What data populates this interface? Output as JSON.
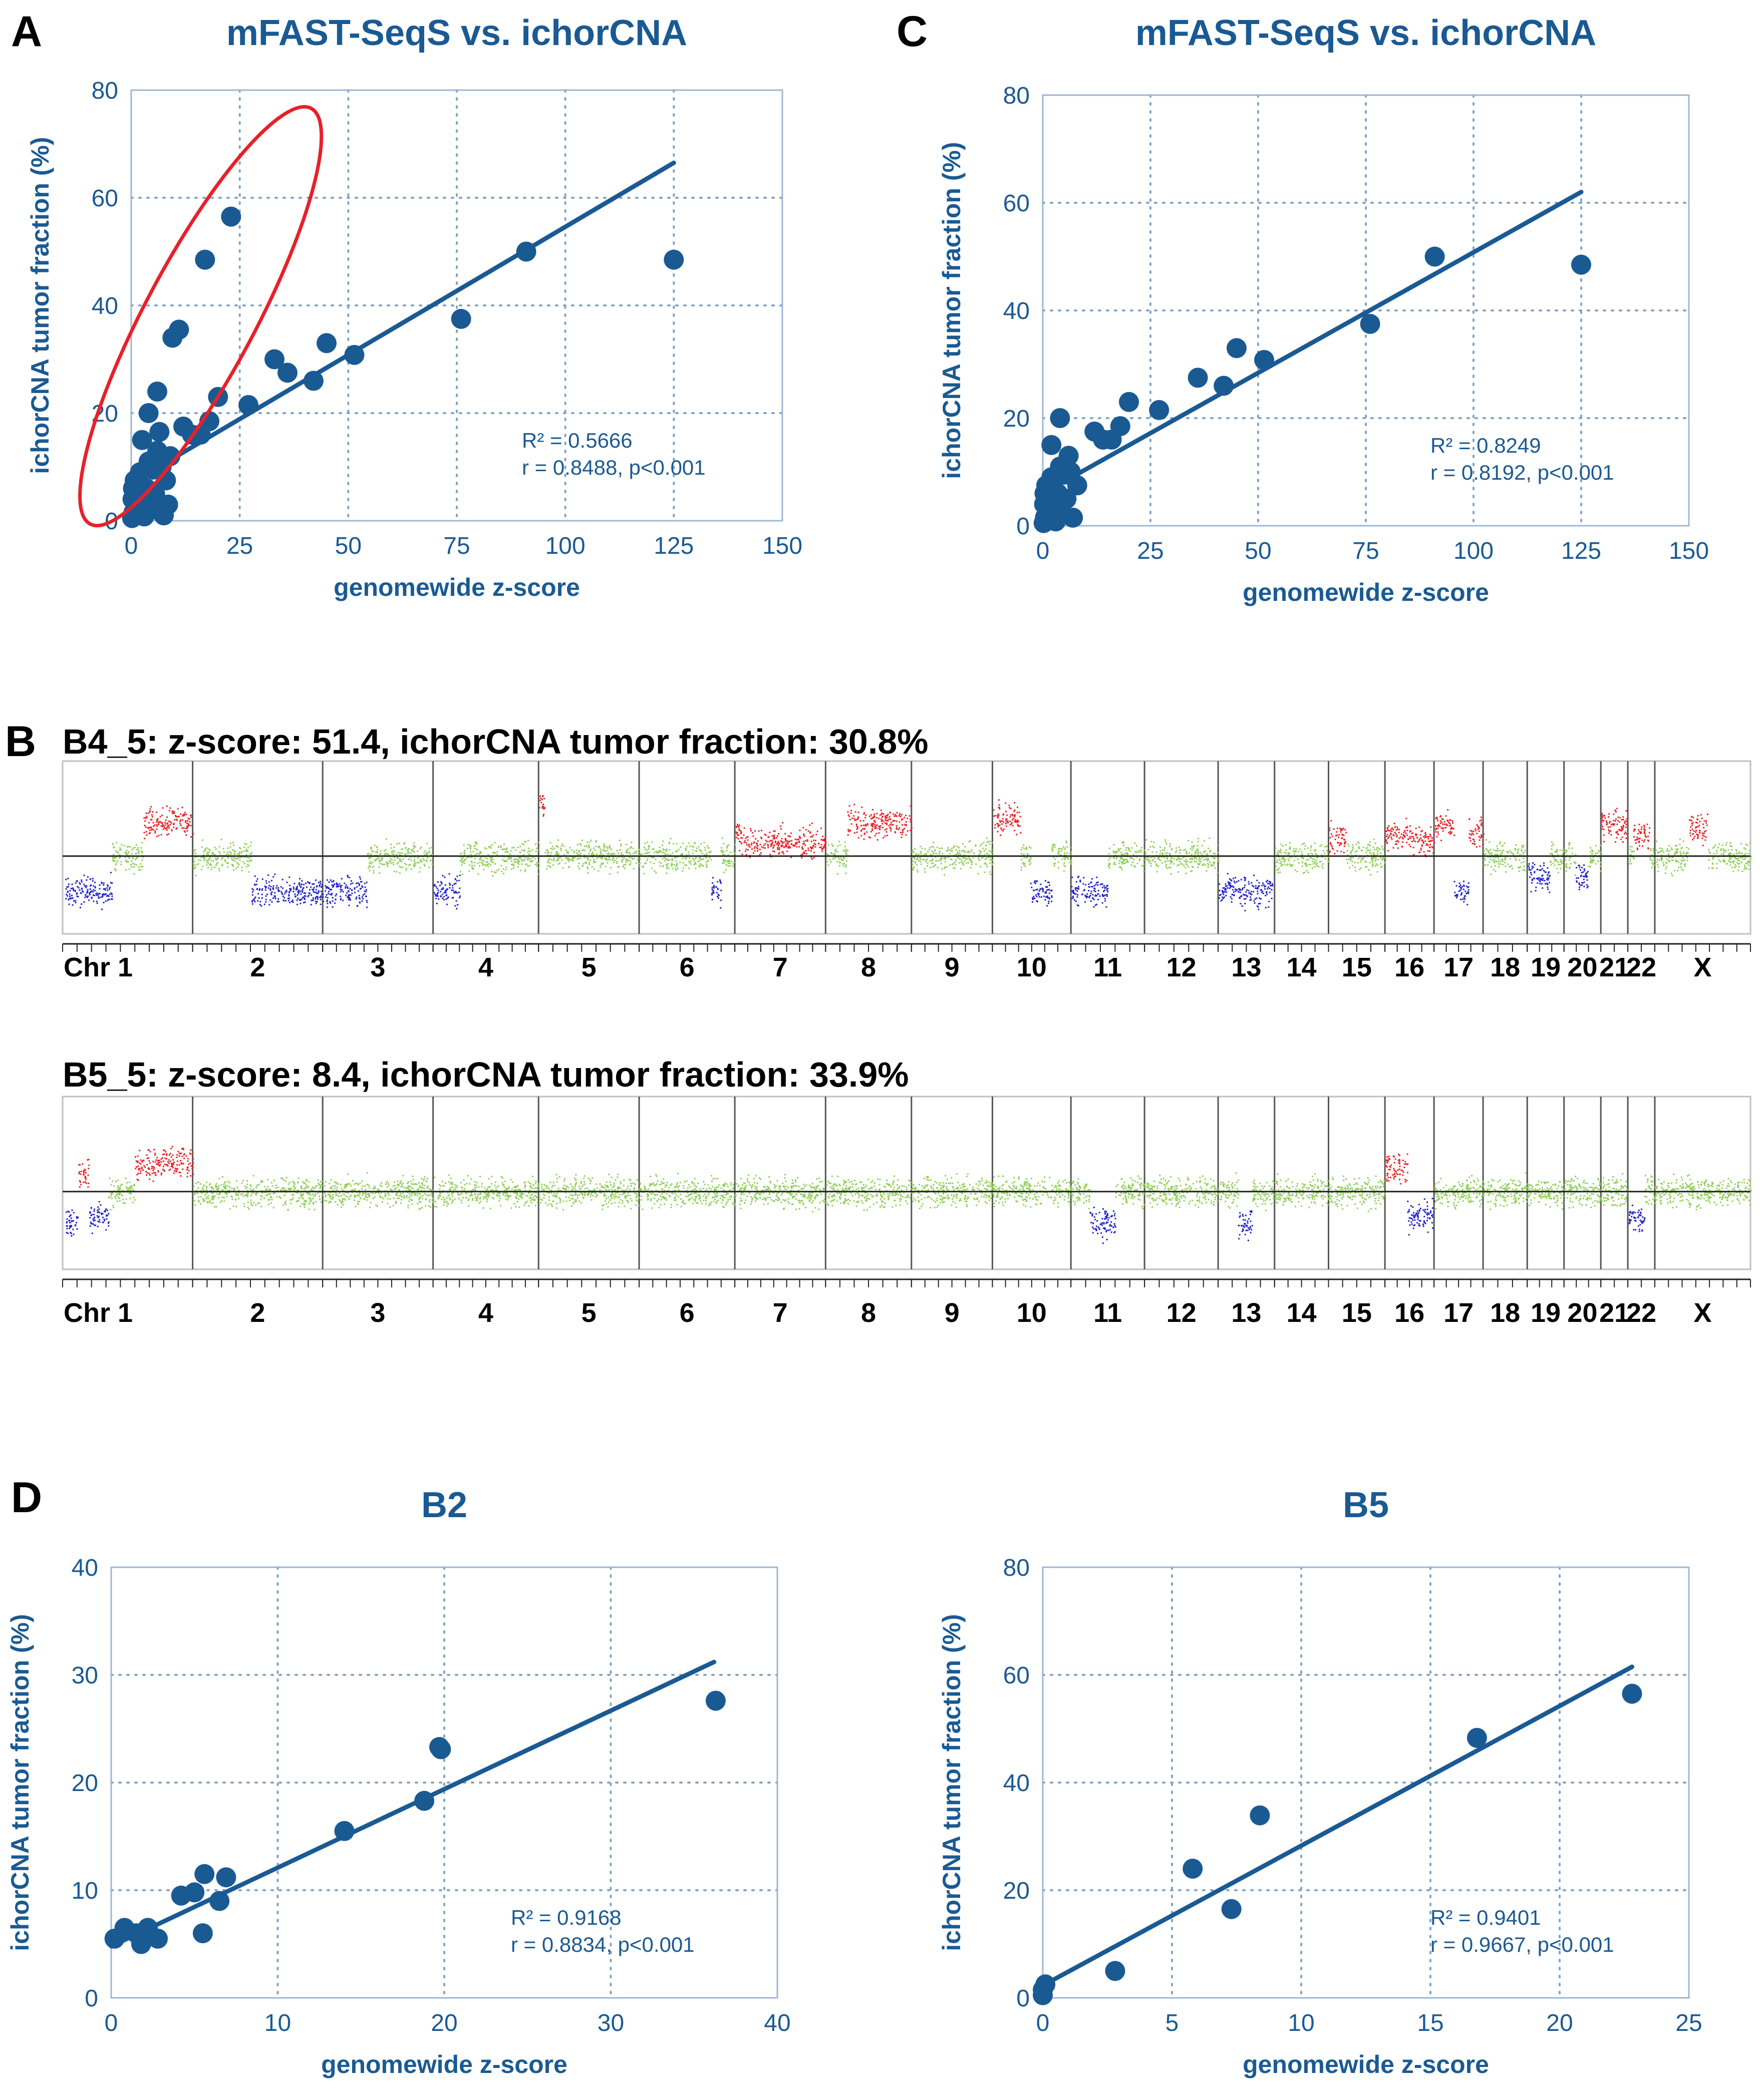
{
  "colors": {
    "primary": "#1a5a93",
    "title": "#1a5a93",
    "outlier_ellipse": "#e8202a",
    "gain": "#e8242a",
    "loss": "#2424c8",
    "neutral": "#8fcf58",
    "karyo_axis": "#222222"
  },
  "panels": {
    "A": "A",
    "B": "B",
    "C": "C",
    "D": "D"
  },
  "chart_data": [
    {
      "id": "A",
      "type": "scatter",
      "title": "mFAST-SeqS vs. ichorCNA",
      "xlabel": "genomewide z-score",
      "ylabel": "ichorCNA tumor fraction (%)",
      "xlim": [
        0,
        150
      ],
      "ylim": [
        0,
        80
      ],
      "xticks": [
        0,
        25,
        50,
        75,
        100,
        125,
        150
      ],
      "yticks": [
        0,
        20,
        40,
        60,
        80
      ],
      "annotation_lines": [
        "R² = 0.5666",
        "r = 0.8488, p<0.001"
      ],
      "fit": {
        "x": [
          0,
          125
        ],
        "y": [
          7,
          66.5
        ]
      },
      "outlier_ellipse": true,
      "points": [
        [
          0.2,
          0.5
        ],
        [
          0.5,
          1.5
        ],
        [
          1,
          2.5
        ],
        [
          0.3,
          4
        ],
        [
          1.5,
          5.5
        ],
        [
          0.8,
          7.5
        ],
        [
          2,
          9
        ],
        [
          0.4,
          6
        ],
        [
          2.5,
          3
        ],
        [
          3,
          0.8
        ],
        [
          3.5,
          6
        ],
        [
          4,
          11
        ],
        [
          4.5,
          2
        ],
        [
          5,
          9.5
        ],
        [
          5.5,
          5
        ],
        [
          6,
          13
        ],
        [
          6.5,
          16.5
        ],
        [
          7,
          10
        ],
        [
          7.5,
          1
        ],
        [
          8,
          7.5
        ],
        [
          8.5,
          3
        ],
        [
          9,
          12
        ],
        [
          2.5,
          15
        ],
        [
          4,
          20
        ],
        [
          6,
          24
        ],
        [
          9.5,
          34
        ],
        [
          11,
          35.5
        ],
        [
          17,
          48.5
        ],
        [
          23,
          56.5
        ],
        [
          12,
          17.5
        ],
        [
          14,
          16
        ],
        [
          16,
          16
        ],
        [
          18,
          18.5
        ],
        [
          20,
          23
        ],
        [
          27,
          21.5
        ],
        [
          33,
          30
        ],
        [
          36,
          27.5
        ],
        [
          42,
          26
        ],
        [
          45,
          33
        ],
        [
          51.4,
          30.8
        ],
        [
          76,
          37.5
        ],
        [
          91,
          50
        ],
        [
          125,
          48.5
        ]
      ]
    },
    {
      "id": "C",
      "type": "scatter",
      "title": "mFAST-SeqS vs. ichorCNA",
      "xlabel": "genomewide z-score",
      "ylabel": "ichorCNA tumor fraction (%)",
      "xlim": [
        0,
        150
      ],
      "ylim": [
        0,
        80
      ],
      "xticks": [
        0,
        25,
        50,
        75,
        100,
        125,
        150
      ],
      "yticks": [
        0,
        20,
        40,
        60,
        80
      ],
      "annotation_lines": [
        "R² = 0.8249",
        "r = 0.8192, p<0.001"
      ],
      "fit": {
        "x": [
          0,
          125
        ],
        "y": [
          6,
          62
        ]
      },
      "outlier_ellipse": false,
      "points": [
        [
          0.2,
          0.5
        ],
        [
          0.5,
          1.5
        ],
        [
          1,
          2.5
        ],
        [
          0.3,
          4
        ],
        [
          1.5,
          5.5
        ],
        [
          0.8,
          7.5
        ],
        [
          2,
          9
        ],
        [
          0.4,
          6
        ],
        [
          2.5,
          3
        ],
        [
          3,
          0.8
        ],
        [
          3.5,
          6
        ],
        [
          4,
          11
        ],
        [
          4.5,
          2
        ],
        [
          5,
          9.5
        ],
        [
          5.5,
          5
        ],
        [
          6,
          13
        ],
        [
          6.5,
          10
        ],
        [
          7,
          1.5
        ],
        [
          8,
          7.5
        ],
        [
          2,
          15
        ],
        [
          4,
          20
        ],
        [
          12,
          17.5
        ],
        [
          14,
          16
        ],
        [
          16,
          16
        ],
        [
          18,
          18.5
        ],
        [
          20,
          23
        ],
        [
          27,
          21.5
        ],
        [
          36,
          27.5
        ],
        [
          42,
          26
        ],
        [
          45,
          33
        ],
        [
          51.4,
          30.8
        ],
        [
          76,
          37.5
        ],
        [
          91,
          50
        ],
        [
          125,
          48.5
        ]
      ]
    },
    {
      "id": "D1",
      "type": "scatter",
      "title": "B2",
      "xlabel": "genomewide z-score",
      "ylabel": "ichorCNA tumor fraction (%)",
      "xlim": [
        0,
        40
      ],
      "ylim": [
        0,
        40
      ],
      "xticks": [
        0,
        10,
        20,
        30,
        40
      ],
      "yticks": [
        0,
        10,
        20,
        30,
        40
      ],
      "annotation_lines": [
        "R² = 0.9168",
        "r = 0.8834, p<0.001"
      ],
      "fit": {
        "x": [
          0,
          36.2
        ],
        "y": [
          4.8,
          31.2
        ]
      },
      "outlier_ellipse": false,
      "points": [
        [
          0.2,
          5.5
        ],
        [
          0.8,
          6.5
        ],
        [
          1.5,
          6
        ],
        [
          1.8,
          5
        ],
        [
          2.2,
          6.5
        ],
        [
          2.8,
          5.5
        ],
        [
          4.2,
          9.5
        ],
        [
          5,
          9.8
        ],
        [
          5.5,
          6
        ],
        [
          5.6,
          11.5
        ],
        [
          6.5,
          9
        ],
        [
          6.9,
          11.2
        ],
        [
          14,
          15.5
        ],
        [
          18.8,
          18.3
        ],
        [
          19.7,
          23.3
        ],
        [
          19.8,
          23.1
        ],
        [
          36.3,
          27.6
        ]
      ]
    },
    {
      "id": "D2",
      "type": "scatter",
      "title": "B5",
      "xlabel": "genomewide z-score",
      "ylabel": "ichorCNA tumor fraction (%)",
      "xlim": [
        0,
        25
      ],
      "ylim": [
        0,
        80
      ],
      "xticks": [
        0,
        5,
        10,
        15,
        20,
        25
      ],
      "yticks": [
        0,
        20,
        40,
        60,
        80
      ],
      "annotation_lines": [
        "R² = 0.9401",
        "r = 0.9667, p<0.001"
      ],
      "fit": {
        "x": [
          0,
          22.8
        ],
        "y": [
          2.3,
          61.5
        ]
      },
      "outlier_ellipse": false,
      "points": [
        [
          0,
          0.5
        ],
        [
          0,
          1.5
        ],
        [
          0.1,
          2.5
        ],
        [
          2.8,
          5
        ],
        [
          5.8,
          24
        ],
        [
          7.3,
          16.5
        ],
        [
          8.4,
          33.9
        ],
        [
          16.8,
          48.3
        ],
        [
          22.8,
          56.5
        ]
      ]
    },
    {
      "id": "B1",
      "type": "heatmap",
      "title": "B4_5: z-score: 51.4, ichorCNA tumor fraction: 30.8%",
      "chromosomes": [
        "Chr 1",
        "2",
        "3",
        "4",
        "5",
        "6",
        "7",
        "8",
        "9",
        "10",
        "11",
        "12",
        "13",
        "14",
        "15",
        "16",
        "17",
        "18",
        "19",
        "20",
        "21",
        "22",
        "X"
      ],
      "chrom_widths": [
        265,
        265,
        225,
        215,
        205,
        195,
        185,
        175,
        165,
        160,
        150,
        150,
        115,
        110,
        115,
        100,
        100,
        90,
        75,
        75,
        55,
        55,
        195
      ],
      "segments": [
        [
          0,
          0.02,
          0.38,
          -1
        ],
        [
          0,
          0.38,
          0.62,
          0
        ],
        [
          0,
          0.62,
          1.0,
          1
        ],
        [
          1,
          0.0,
          0.45,
          0
        ],
        [
          1,
          0.45,
          1.0,
          -1
        ],
        [
          2,
          0.0,
          0.4,
          -1
        ],
        [
          2,
          0.4,
          1.0,
          0
        ],
        [
          3,
          0.0,
          0.25,
          -1
        ],
        [
          3,
          0.25,
          1.0,
          0
        ],
        [
          4,
          0.0,
          0.06,
          1.5
        ],
        [
          4,
          0.06,
          1.0,
          0
        ],
        [
          5,
          0.0,
          0.75,
          0
        ],
        [
          5,
          0.75,
          0.85,
          -1
        ],
        [
          5,
          0.85,
          1.0,
          0
        ],
        [
          6,
          0.0,
          0.1,
          0.6
        ],
        [
          6,
          0.1,
          1.0,
          0.4
        ],
        [
          7,
          0.0,
          0.25,
          0
        ],
        [
          7,
          0.25,
          1.0,
          1
        ],
        [
          8,
          0.0,
          1.0,
          0
        ],
        [
          9,
          0.0,
          0.35,
          1.1
        ],
        [
          9,
          0.35,
          0.48,
          0
        ],
        [
          9,
          0.48,
          0.75,
          -1
        ],
        [
          9,
          0.75,
          1.0,
          0
        ],
        [
          10,
          0.0,
          0.5,
          -1
        ],
        [
          10,
          0.5,
          1.0,
          0
        ],
        [
          11,
          0.0,
          1.0,
          0
        ],
        [
          12,
          0.0,
          0.95,
          -1
        ],
        [
          13,
          0.0,
          1.0,
          0
        ],
        [
          14,
          0.0,
          0.3,
          0.5
        ],
        [
          14,
          0.3,
          1.0,
          0
        ],
        [
          15,
          0.0,
          0.5,
          0.6
        ],
        [
          15,
          0.5,
          1.0,
          0.5
        ],
        [
          16,
          0.0,
          0.4,
          0.9
        ],
        [
          16,
          0.4,
          0.7,
          -1
        ],
        [
          16,
          0.7,
          1.0,
          0.7
        ],
        [
          17,
          0.0,
          1.0,
          0
        ],
        [
          18,
          0.0,
          0.6,
          -0.6
        ],
        [
          18,
          0.6,
          1.0,
          0
        ],
        [
          19,
          0.0,
          0.3,
          0
        ],
        [
          19,
          0.3,
          0.65,
          -0.6
        ],
        [
          19,
          0.65,
          1.0,
          0
        ],
        [
          20,
          0.0,
          1.0,
          0.9
        ],
        [
          21,
          0.0,
          0.2,
          0
        ],
        [
          21,
          0.2,
          0.8,
          0.6
        ],
        [
          21,
          0.8,
          1.0,
          0
        ],
        [
          22,
          0.0,
          0.35,
          0
        ],
        [
          22,
          0.35,
          0.55,
          0.8
        ],
        [
          22,
          0.55,
          1.0,
          0
        ]
      ]
    },
    {
      "id": "B2",
      "type": "heatmap",
      "title": "B5_5: z-score: 8.4, ichorCNA tumor fraction: 33.9%",
      "chromosomes": [
        "Chr 1",
        "2",
        "3",
        "4",
        "5",
        "6",
        "7",
        "8",
        "9",
        "10",
        "11",
        "12",
        "13",
        "14",
        "15",
        "16",
        "17",
        "18",
        "19",
        "20",
        "21",
        "22",
        "X"
      ],
      "chrom_widths": [
        265,
        265,
        225,
        215,
        205,
        195,
        185,
        175,
        165,
        160,
        150,
        150,
        115,
        110,
        115,
        100,
        100,
        90,
        75,
        75,
        55,
        55,
        195
      ],
      "segments": [
        [
          0,
          0.02,
          0.12,
          -0.9
        ],
        [
          0,
          0.12,
          0.2,
          0.6
        ],
        [
          0,
          0.2,
          0.35,
          -0.7
        ],
        [
          0,
          0.35,
          0.55,
          0
        ],
        [
          0,
          0.55,
          1.0,
          0.8
        ],
        [
          1,
          0.0,
          1.0,
          0
        ],
        [
          2,
          0.0,
          1.0,
          0
        ],
        [
          3,
          0.0,
          1.0,
          0
        ],
        [
          4,
          0.0,
          1.0,
          0
        ],
        [
          5,
          0.0,
          1.0,
          0
        ],
        [
          6,
          0.0,
          1.0,
          0
        ],
        [
          7,
          0.0,
          1.0,
          0
        ],
        [
          8,
          0.0,
          1.0,
          0
        ],
        [
          9,
          0.0,
          1.0,
          0
        ],
        [
          10,
          0.0,
          0.25,
          0
        ],
        [
          10,
          0.25,
          0.6,
          -0.9
        ],
        [
          10,
          0.6,
          1.0,
          0
        ],
        [
          11,
          0.0,
          1.0,
          0
        ],
        [
          12,
          0.0,
          0.35,
          0
        ],
        [
          12,
          0.35,
          0.6,
          -0.9
        ],
        [
          12,
          0.6,
          1.0,
          0
        ],
        [
          13,
          0.0,
          1.0,
          0
        ],
        [
          14,
          0.0,
          1.0,
          0
        ],
        [
          15,
          0.0,
          0.45,
          0.7
        ],
        [
          15,
          0.45,
          1.0,
          -0.7
        ],
        [
          16,
          0.0,
          1.0,
          0
        ],
        [
          17,
          0.0,
          1.0,
          0
        ],
        [
          18,
          0.0,
          1.0,
          0
        ],
        [
          19,
          0.0,
          1.0,
          0
        ],
        [
          20,
          0.0,
          1.0,
          0
        ],
        [
          21,
          0.0,
          0.6,
          -0.8
        ],
        [
          21,
          0.6,
          1.0,
          0
        ],
        [
          22,
          0.0,
          1.0,
          0
        ]
      ]
    }
  ]
}
